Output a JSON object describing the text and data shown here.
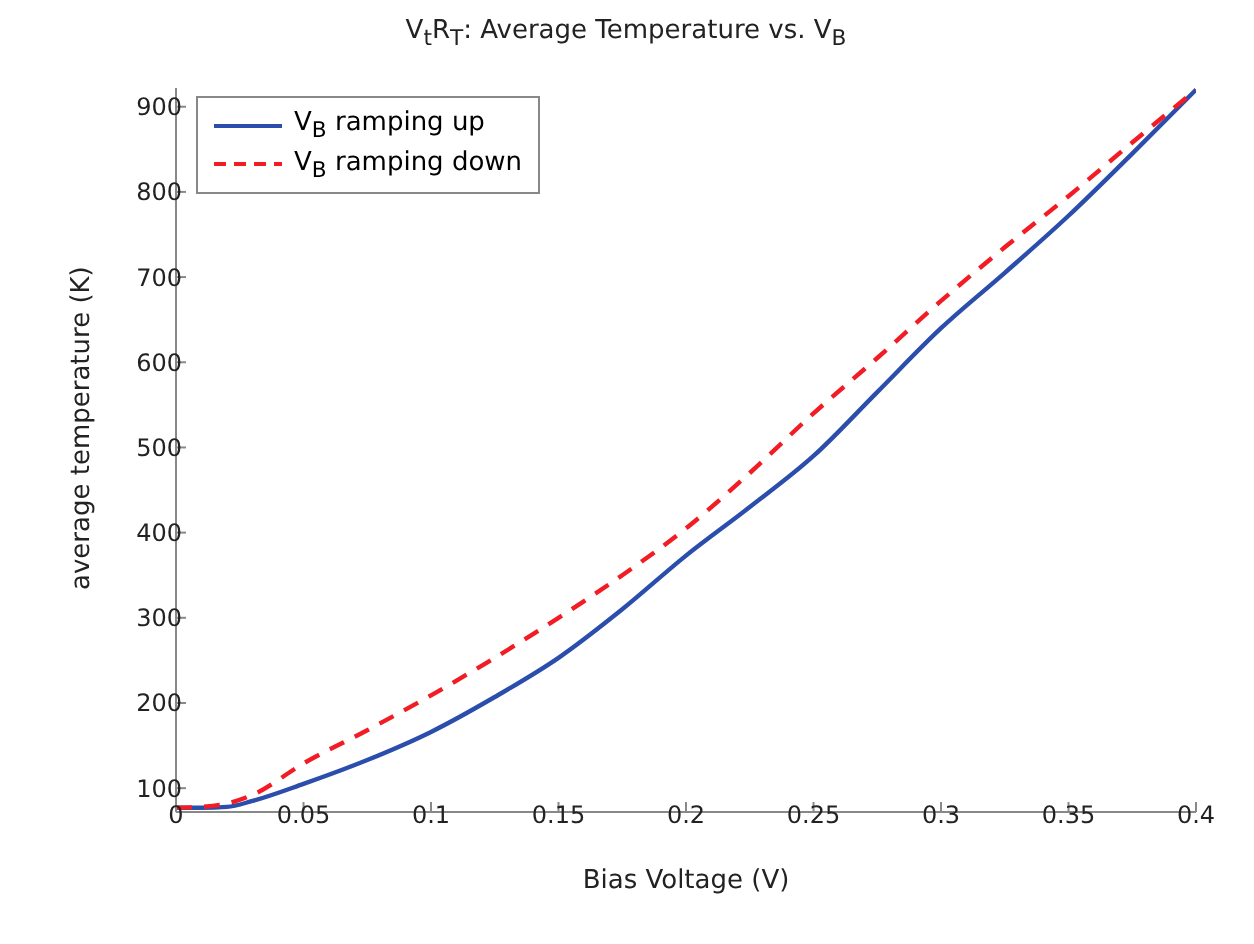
{
  "chart_data": {
    "type": "line",
    "title": "V$_{t}$R$_{T}$: Average Temperature vs. V$_{B}$",
    "xlabel": "Bias Voltage (V)",
    "ylabel": "average temperature (K)",
    "x": [
      0,
      0.01,
      0.02,
      0.03,
      0.05,
      0.075,
      0.1,
      0.125,
      0.15,
      0.175,
      0.2,
      0.225,
      0.25,
      0.275,
      0.3,
      0.325,
      0.35,
      0.375,
      0.4
    ],
    "series": [
      {
        "name": "V$_{B}$ ramping up",
        "color": "#2b4eac",
        "line_style": "solid",
        "values": [
          77,
          77,
          78,
          85,
          105,
          133,
          166,
          207,
          253,
          310,
          373,
          430,
          490,
          565,
          640,
          705,
          772,
          845,
          920
        ]
      },
      {
        "name": "V$_{B}$ ramping down",
        "color": "#f21c24",
        "line_style": "dashed",
        "values": [
          77,
          78,
          82,
          92,
          129,
          168,
          209,
          253,
          300,
          350,
          405,
          470,
          540,
          605,
          672,
          735,
          795,
          858,
          920
        ]
      }
    ],
    "xlim": [
      0,
      0.4
    ],
    "xticks": [
      0,
      0.05,
      0.1,
      0.15,
      0.2,
      0.25,
      0.3,
      0.35,
      0.4
    ],
    "ylim": [
      72,
      922
    ],
    "yticks": [
      100,
      200,
      300,
      400,
      500,
      600,
      700,
      800,
      900
    ],
    "grid": false,
    "legend": "top left",
    "marker": "none"
  }
}
